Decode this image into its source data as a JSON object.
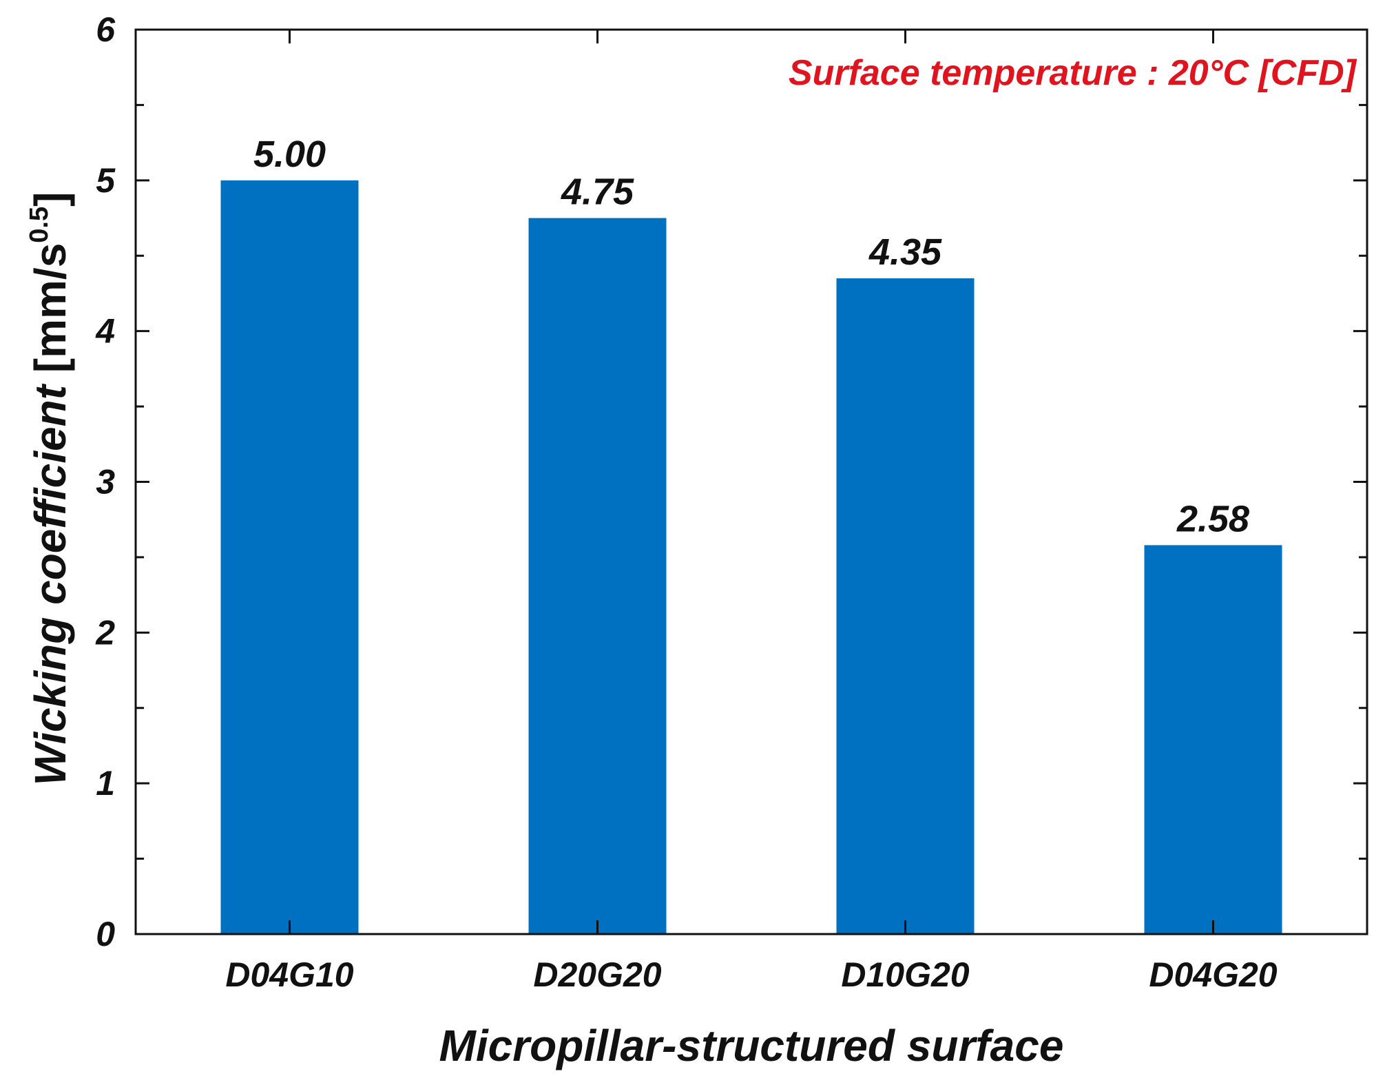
{
  "chart_data": {
    "type": "bar",
    "categories": [
      "D04G10",
      "D20G20",
      "D10G20",
      "D04G20"
    ],
    "values": [
      5.0,
      4.75,
      4.35,
      2.58
    ],
    "value_labels": [
      "5.00",
      "4.75",
      "4.35",
      "2.58"
    ],
    "title": "",
    "xlabel": "Micropillar-structured surface",
    "ylabel": "Wicking coefficient [mm/s0.5]",
    "ylabel_parts": {
      "italic": "Wicking coefficient",
      "unit_open": " [mm/s",
      "unit_sup": "0.5",
      "unit_close": "]"
    },
    "ylim": [
      0,
      6
    ],
    "yticks": [
      "0",
      "1",
      "2",
      "3",
      "4",
      "5",
      "6"
    ],
    "annotation": "Surface temperature : 20°C  [CFD]",
    "grid": false,
    "legend": "none",
    "colors": {
      "bar": "#0070C0",
      "annotation": "#E0141E",
      "axis": "#111111"
    }
  }
}
